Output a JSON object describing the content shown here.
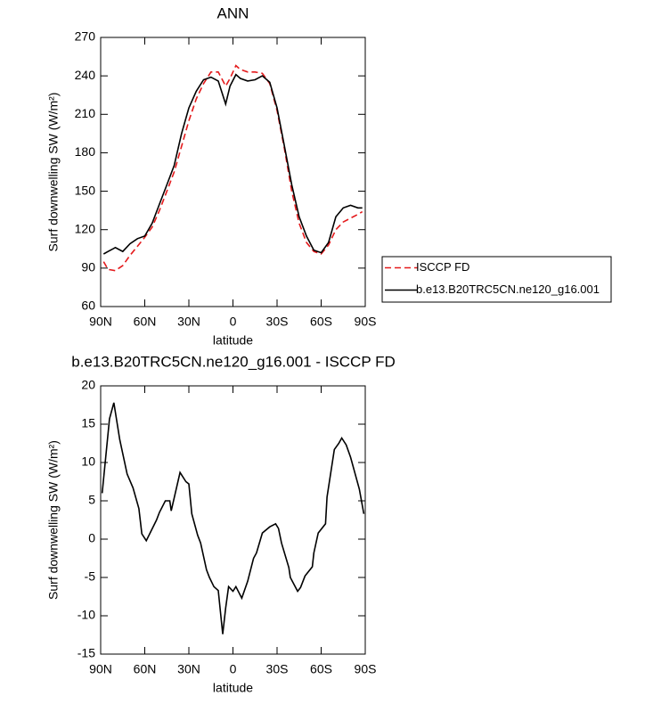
{
  "chart_data": [
    {
      "type": "line",
      "title": "ANN",
      "xlabel": "latitude",
      "ylabel": "Surf downwelling SW (W/m²)",
      "xlim": [
        90,
        -90
      ],
      "ylim": [
        60,
        270
      ],
      "xticks": [
        {
          "value": 90,
          "label": "90N"
        },
        {
          "value": 60,
          "label": "60N"
        },
        {
          "value": 30,
          "label": "30N"
        },
        0,
        {
          "value": -30,
          "label": "30S"
        },
        {
          "value": -60,
          "label": "60S"
        },
        {
          "value": -90,
          "label": "90S"
        }
      ],
      "yticks": [
        60,
        90,
        120,
        150,
        180,
        210,
        240,
        270
      ],
      "legend": "right",
      "series": [
        {
          "name": "ISCCP FD",
          "color": "#e41a1c",
          "dash": true,
          "x": [
            88,
            85,
            80,
            75,
            70,
            65,
            60,
            55,
            50,
            45,
            40,
            35,
            30,
            25,
            20,
            15,
            10,
            5,
            2,
            -2,
            -5,
            -10,
            -15,
            -20,
            -25,
            -30,
            -35,
            -40,
            -45,
            -50,
            -55,
            -60,
            -65,
            -70,
            -75,
            -80,
            -85,
            -88
          ],
          "values": [
            95,
            89,
            88,
            92,
            100,
            107,
            114,
            122,
            135,
            150,
            165,
            185,
            205,
            222,
            234,
            243,
            243,
            232,
            238,
            248,
            245,
            243,
            243,
            242,
            234,
            213,
            183,
            150,
            125,
            110,
            103,
            101,
            108,
            120,
            126,
            129,
            132,
            134
          ]
        },
        {
          "name": "b.e13.B20TRC5CN.ne120_g16.001",
          "color": "#000000",
          "dash": false,
          "x": [
            88,
            85,
            80,
            75,
            70,
            65,
            60,
            55,
            50,
            45,
            40,
            35,
            30,
            25,
            20,
            15,
            10,
            5,
            2,
            -2,
            -5,
            -10,
            -15,
            -20,
            -25,
            -30,
            -35,
            -40,
            -45,
            -50,
            -55,
            -60,
            -65,
            -70,
            -75,
            -80,
            -85,
            -88
          ],
          "values": [
            101,
            103,
            106,
            103,
            109,
            113,
            115,
            125,
            140,
            155,
            170,
            195,
            215,
            228,
            237,
            239,
            236,
            218,
            232,
            241,
            238,
            236,
            237,
            240,
            235,
            215,
            185,
            155,
            130,
            115,
            104,
            102,
            110,
            130,
            137,
            139,
            137,
            137
          ]
        }
      ]
    },
    {
      "type": "line",
      "title": "b.e13.B20TRC5CN.ne120_g16.001 - ISCCP FD",
      "xlabel": "latitude",
      "ylabel": "Surf downwelling SW (W/m²)",
      "xlim": [
        90,
        -90
      ],
      "ylim": [
        -15,
        20
      ],
      "xticks": [
        {
          "value": 90,
          "label": "90N"
        },
        {
          "value": 60,
          "label": "60N"
        },
        {
          "value": 30,
          "label": "30N"
        },
        0,
        {
          "value": -30,
          "label": "30S"
        },
        {
          "value": -60,
          "label": "60S"
        },
        {
          "value": -90,
          "label": "90S"
        }
      ],
      "yticks": [
        -15,
        -10,
        -5,
        0,
        5,
        10,
        15,
        20
      ],
      "series": [
        {
          "color": "#000000",
          "dash": false,
          "x": [
            89,
            84,
            81,
            77,
            72,
            68,
            64,
            62,
            59,
            52,
            50,
            46,
            43,
            42,
            36,
            32,
            30,
            28,
            24,
            22,
            18,
            16,
            13,
            10,
            7,
            5,
            3,
            0,
            -2,
            -6,
            -10,
            -14,
            -16,
            -20,
            -25,
            -29,
            -31,
            -33,
            -38,
            -39,
            -44,
            -46,
            -49,
            -54,
            -55,
            -58,
            -63,
            -64,
            -69,
            -72,
            -74,
            -77,
            -80,
            -86,
            -89
          ],
          "values": [
            6,
            15.7,
            17.8,
            13,
            8.5,
            6.7,
            4,
            0.7,
            -0.2,
            2.5,
            3.5,
            5,
            5,
            3.7,
            8.7,
            7.5,
            7.2,
            3.3,
            0.5,
            -0.5,
            -4,
            -5,
            -6.2,
            -6.7,
            -12.4,
            -9,
            -6.2,
            -6.8,
            -6.2,
            -7.7,
            -5.5,
            -2.5,
            -1.8,
            0.8,
            1.6,
            2,
            1.4,
            -0.5,
            -3.7,
            -5,
            -6.8,
            -6.3,
            -4.8,
            -3.6,
            -1.8,
            0.8,
            2,
            5.5,
            11.7,
            12.5,
            13.2,
            12.3,
            10.7,
            6.5,
            3.3
          ]
        }
      ]
    }
  ]
}
